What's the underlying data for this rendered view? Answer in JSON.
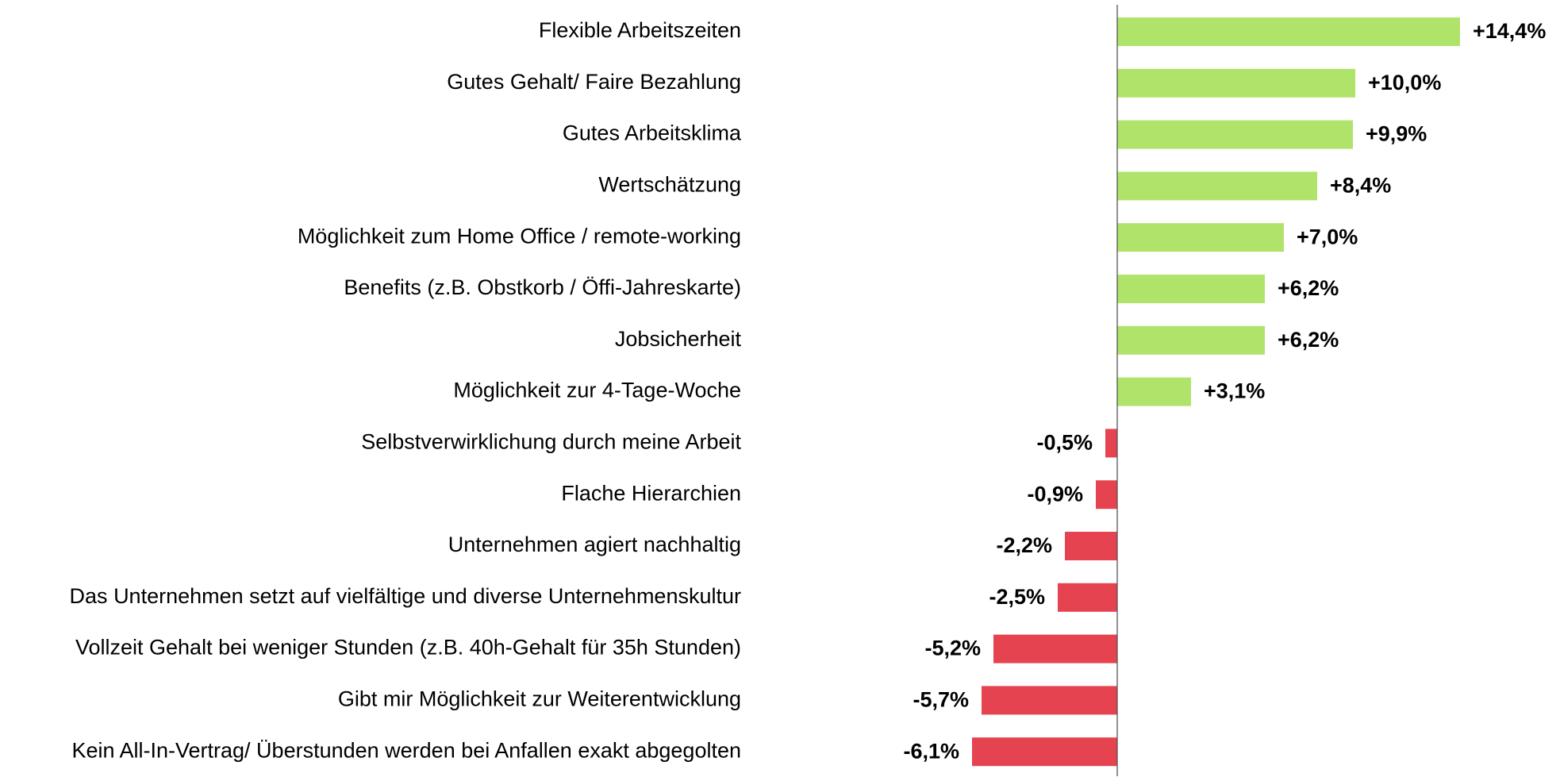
{
  "chart_data": {
    "type": "bar",
    "orientation": "horizontal",
    "categories": [
      "Flexible Arbeitszeiten",
      "Gutes Gehalt/ Faire Bezahlung",
      "Gutes Arbeitsklima",
      "Wertschätzung",
      "Möglichkeit zum Home Office / remote-working",
      "Benefits (z.B. Obstkorb / Öffi-Jahreskarte)",
      "Jobsicherheit",
      "Möglichkeit zur 4-Tage-Woche",
      "Selbstverwirklichung durch meine Arbeit",
      "Flache Hierarchien",
      "Unternehmen agiert nachhaltig",
      "Das Unternehmen setzt auf vielfältige und diverse Unternehmenskultur",
      "Vollzeit Gehalt bei weniger Stunden (z.B. 40h-Gehalt für 35h Stunden)",
      "Gibt mir Möglichkeit zur Weiterentwicklung",
      "Kein All-In-Vertrag/ Überstunden werden bei Anfallen exakt abgegolten"
    ],
    "values": [
      14.4,
      10.0,
      9.9,
      8.4,
      7.0,
      6.2,
      6.2,
      3.1,
      -0.5,
      -0.9,
      -2.2,
      -2.5,
      -5.2,
      -5.7,
      -6.1
    ],
    "value_labels": [
      "+14,4%",
      "+10,0%",
      "+9,9%",
      "+8,4%",
      "+7,0%",
      "+6,2%",
      "+6,2%",
      "+3,1%",
      "-0,5%",
      "-0,9%",
      "-2,2%",
      "-2,5%",
      "-5,2%",
      "-5,7%",
      "-6,1%"
    ],
    "positive_color": "#b0e36a",
    "negative_color": "#e5434f"
  }
}
